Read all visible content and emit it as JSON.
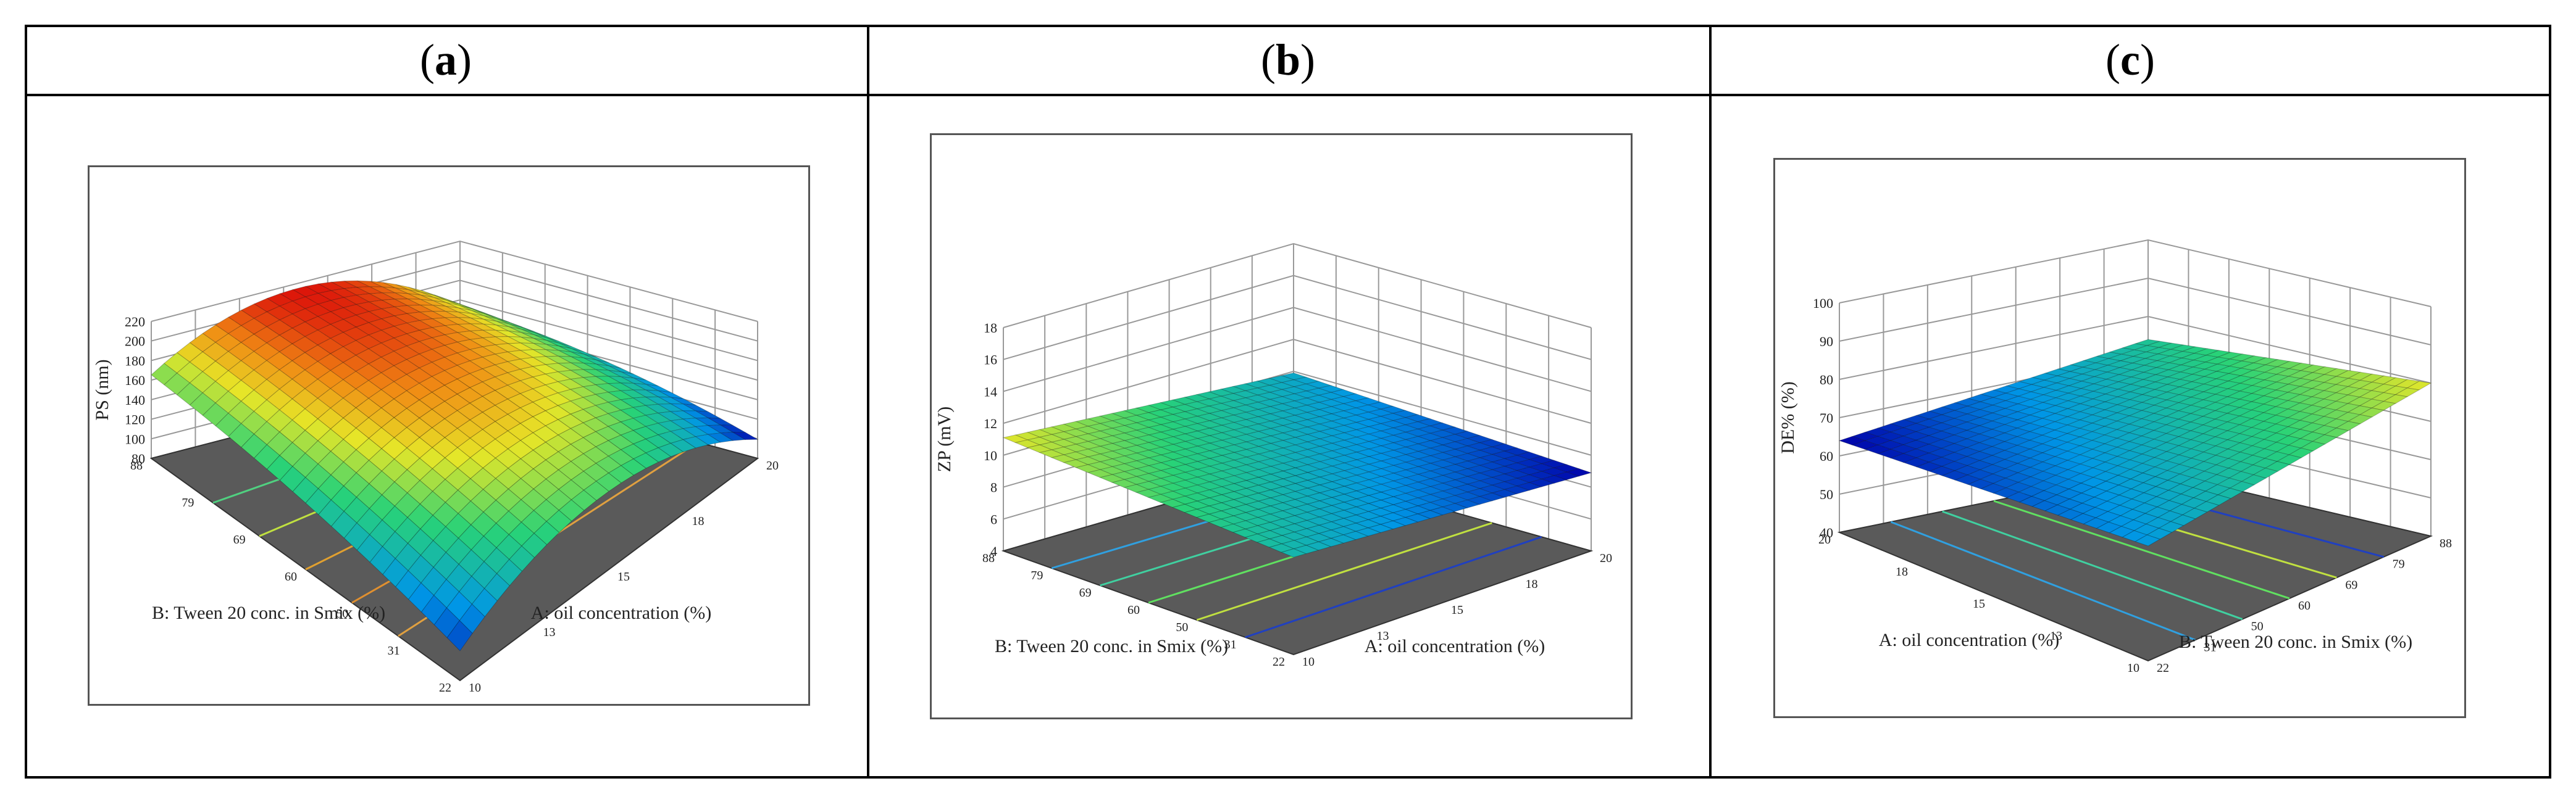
{
  "panels": [
    {
      "id": "a",
      "open": "(",
      "letter": "a",
      "close": ")"
    },
    {
      "id": "b",
      "open": "(",
      "letter": "b",
      "close": ")"
    },
    {
      "id": "c",
      "open": "(",
      "letter": "c",
      "close": ")"
    }
  ],
  "chart_data": [
    {
      "type": "surface",
      "zlabel": "PS (nm)",
      "xlabel": "A: oil concentration (%)",
      "ylabel": "B: Tween 20 conc. in Smix (%)",
      "z_ticks": [
        80,
        100,
        120,
        140,
        160,
        180,
        200,
        220
      ],
      "x_ticks": [
        10,
        13,
        15,
        18,
        20
      ],
      "y_ticks": [
        22,
        31,
        50,
        60,
        69,
        79,
        88
      ],
      "z_range": [
        80,
        220
      ],
      "colormap": "blue-green-yellow-red",
      "contours_on_floor": true,
      "grid": true
    },
    {
      "type": "surface",
      "zlabel": "ZP (mV)",
      "xlabel": "A: oil concentration (%)",
      "ylabel": "B: Tween 20 conc. in Smix (%)",
      "z_ticks": [
        4,
        6,
        8,
        10,
        12,
        14,
        16,
        18
      ],
      "x_ticks": [
        10,
        13,
        15,
        18,
        20
      ],
      "y_ticks": [
        22,
        31,
        50,
        60,
        69,
        79,
        88
      ],
      "z_range": [
        4,
        18
      ],
      "colormap": "blue-green-yellow",
      "contours_on_floor": true,
      "grid": true
    },
    {
      "type": "surface",
      "zlabel": "DE% (%)",
      "xlabel": "A: oil concentration (%)",
      "ylabel": "B: Tween 20 conc. in Smix (%)",
      "z_ticks": [
        40,
        50,
        60,
        70,
        80,
        90,
        100
      ],
      "x_ticks": [
        10,
        13,
        15,
        18,
        20
      ],
      "y_ticks": [
        22,
        31,
        50,
        60,
        69,
        79,
        88
      ],
      "z_range": [
        40,
        100
      ],
      "colormap": "blue-green-yellow",
      "contours_on_floor": true,
      "grid": true
    }
  ]
}
